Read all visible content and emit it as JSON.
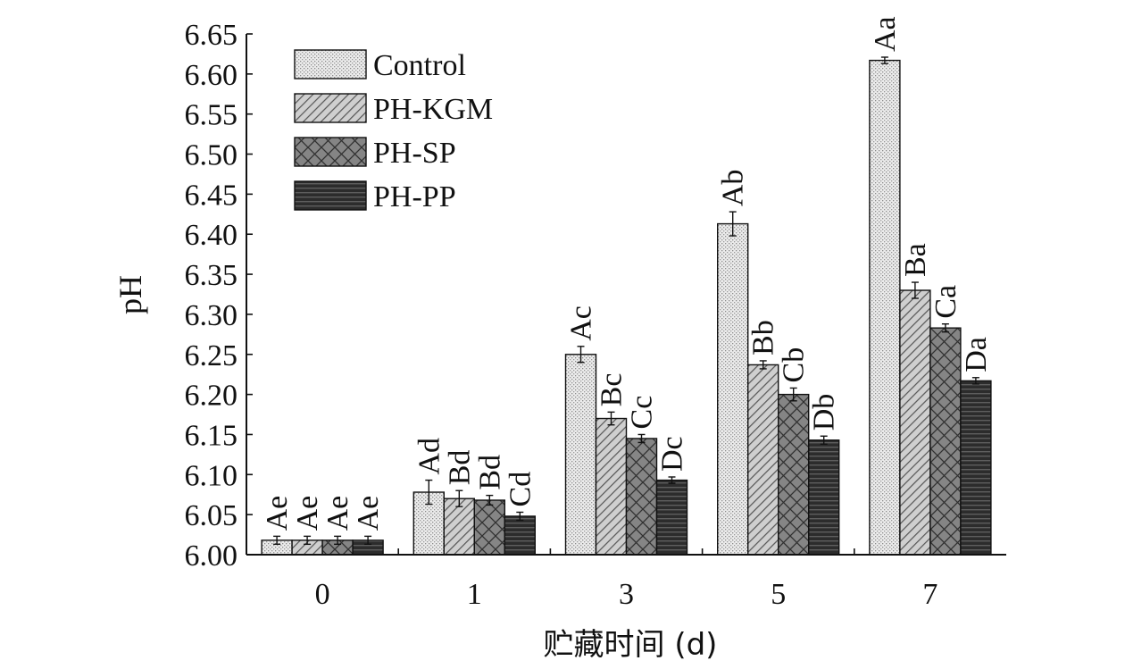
{
  "chart_data": {
    "type": "bar",
    "title": "",
    "xlabel": "贮藏时间 (d)",
    "ylabel": "pH",
    "ylim": [
      6.0,
      6.65
    ],
    "yticks": [
      "6.00",
      "6.05",
      "6.10",
      "6.15",
      "6.20",
      "6.25",
      "6.30",
      "6.35",
      "6.40",
      "6.45",
      "6.50",
      "6.55",
      "6.60",
      "6.65"
    ],
    "categories": [
      "0",
      "1",
      "3",
      "5",
      "7"
    ],
    "legend_position": "top-left",
    "series": [
      {
        "name": "Control",
        "pattern": "dotted",
        "values": [
          6.018,
          6.078,
          6.25,
          6.413,
          6.617
        ],
        "errors": [
          0.005,
          0.015,
          0.01,
          0.015,
          0.004
        ],
        "labels": [
          "Ae",
          "Ad",
          "Ac",
          "Ab",
          "Aa"
        ]
      },
      {
        "name": "PH-KGM",
        "pattern": "diagonal",
        "values": [
          6.018,
          6.07,
          6.17,
          6.237,
          6.33
        ],
        "errors": [
          0.005,
          0.01,
          0.008,
          0.005,
          0.01
        ],
        "labels": [
          "Ae",
          "Bd",
          "Bc",
          "Bb",
          "Ba"
        ]
      },
      {
        "name": "PH-SP",
        "pattern": "crosshatch",
        "values": [
          6.018,
          6.068,
          6.145,
          6.2,
          6.283
        ],
        "errors": [
          0.005,
          0.006,
          0.005,
          0.008,
          0.005
        ],
        "labels": [
          "Ae",
          "Bd",
          "Cc",
          "Cb",
          "Ca"
        ]
      },
      {
        "name": "PH-PP",
        "pattern": "horizontal",
        "values": [
          6.018,
          6.048,
          6.093,
          6.143,
          6.217
        ],
        "errors": [
          0.005,
          0.005,
          0.004,
          0.005,
          0.004
        ],
        "labels": [
          "Ae",
          "Cd",
          "Dc",
          "Db",
          "Da"
        ]
      }
    ]
  }
}
